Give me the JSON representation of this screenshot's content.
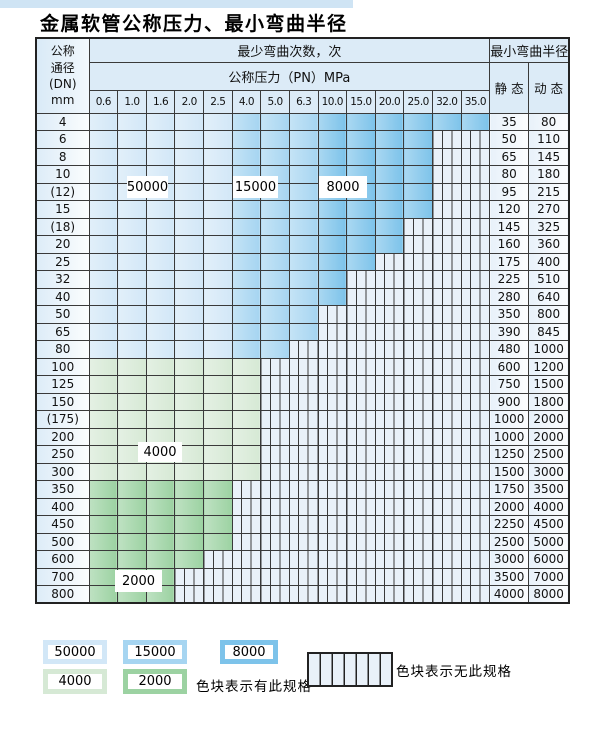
{
  "page_title": "金属软管公称压力、最小弯曲半径",
  "table": {
    "corner_lines": [
      "公称",
      "通径",
      "(DN)",
      "mm"
    ],
    "bend_cycles_header": "最少弯曲次数，次",
    "pressure_header": "公称压力（PN）MPa",
    "pressure_columns": [
      "0.6",
      "1.0",
      "1.6",
      "2.0",
      "2.5",
      "4.0",
      "5.0",
      "6.3",
      "10.0",
      "15.0",
      "20.0",
      "25.0",
      "32.0",
      "35.0"
    ],
    "radius_header": "最小弯曲半径",
    "static_header": "静 态",
    "dynamic_header": "动 态",
    "rows": [
      {
        "dn": "4",
        "band": "blue",
        "spec_cols": 14,
        "static": "35",
        "dynamic": "80"
      },
      {
        "dn": "6",
        "band": "blue",
        "spec_cols": 12,
        "static": "50",
        "dynamic": "110"
      },
      {
        "dn": "8",
        "band": "blue",
        "spec_cols": 12,
        "static": "65",
        "dynamic": "145"
      },
      {
        "dn": "10",
        "band": "blue",
        "spec_cols": 12,
        "static": "80",
        "dynamic": "180"
      },
      {
        "dn": "(12)",
        "band": "blue",
        "spec_cols": 12,
        "static": "95",
        "dynamic": "215"
      },
      {
        "dn": "15",
        "band": "blue",
        "spec_cols": 12,
        "static": "120",
        "dynamic": "270"
      },
      {
        "dn": "(18)",
        "band": "blue",
        "spec_cols": 11,
        "static": "145",
        "dynamic": "325"
      },
      {
        "dn": "20",
        "band": "blue",
        "spec_cols": 11,
        "static": "160",
        "dynamic": "360"
      },
      {
        "dn": "25",
        "band": "blue",
        "spec_cols": 10,
        "static": "175",
        "dynamic": "400"
      },
      {
        "dn": "32",
        "band": "blue",
        "spec_cols": 9,
        "static": "225",
        "dynamic": "510"
      },
      {
        "dn": "40",
        "band": "blue",
        "spec_cols": 9,
        "static": "280",
        "dynamic": "640"
      },
      {
        "dn": "50",
        "band": "blue",
        "spec_cols": 8,
        "static": "350",
        "dynamic": "800"
      },
      {
        "dn": "65",
        "band": "blue",
        "spec_cols": 8,
        "static": "390",
        "dynamic": "845"
      },
      {
        "dn": "80",
        "band": "blue",
        "spec_cols": 7,
        "static": "480",
        "dynamic": "1000"
      },
      {
        "dn": "100",
        "band": "4000",
        "spec_cols": 6,
        "static": "600",
        "dynamic": "1200"
      },
      {
        "dn": "125",
        "band": "4000",
        "spec_cols": 6,
        "static": "750",
        "dynamic": "1500"
      },
      {
        "dn": "150",
        "band": "4000",
        "spec_cols": 6,
        "static": "900",
        "dynamic": "1800"
      },
      {
        "dn": "(175)",
        "band": "4000",
        "spec_cols": 6,
        "static": "1000",
        "dynamic": "2000"
      },
      {
        "dn": "200",
        "band": "4000",
        "spec_cols": 6,
        "static": "1000",
        "dynamic": "2000"
      },
      {
        "dn": "250",
        "band": "4000",
        "spec_cols": 6,
        "static": "1250",
        "dynamic": "2500"
      },
      {
        "dn": "300",
        "band": "4000",
        "spec_cols": 6,
        "static": "1500",
        "dynamic": "3000"
      },
      {
        "dn": "350",
        "band": "2000",
        "spec_cols": 5,
        "static": "1750",
        "dynamic": "3500"
      },
      {
        "dn": "400",
        "band": "2000",
        "spec_cols": 5,
        "static": "2000",
        "dynamic": "4000"
      },
      {
        "dn": "450",
        "band": "2000",
        "spec_cols": 5,
        "static": "2250",
        "dynamic": "4500"
      },
      {
        "dn": "500",
        "band": "2000",
        "spec_cols": 5,
        "static": "2500",
        "dynamic": "5000"
      },
      {
        "dn": "600",
        "band": "2000",
        "spec_cols": 4,
        "static": "3000",
        "dynamic": "6000"
      },
      {
        "dn": "700",
        "band": "2000",
        "spec_cols": 3,
        "static": "3500",
        "dynamic": "7000"
      },
      {
        "dn": "800",
        "band": "2000",
        "spec_cols": 3,
        "static": "4000",
        "dynamic": "8000"
      }
    ]
  },
  "cycle_overlay_labels": [
    "50000",
    "15000",
    "8000",
    "4000",
    "2000"
  ],
  "legend": {
    "items": [
      {
        "label": "50000",
        "band": "c50000"
      },
      {
        "label": "15000",
        "band": "c15000"
      },
      {
        "label": "8000",
        "band": "c8000"
      },
      {
        "label": "4000",
        "band": "c4000"
      },
      {
        "label": "2000",
        "band": "c2000"
      }
    ],
    "has_spec_text": "色块表示有此规格",
    "no_spec_text": "色块表示无此规格"
  },
  "colors": {
    "cycles_50000": "#d2e7f7",
    "cycles_15000": "#a6d5f1",
    "cycles_8000": "#7dc3ea",
    "cycles_4000": "#d6e9d5",
    "cycles_2000": "#9cd2a2",
    "no_spec_background": "#e9f1f9",
    "grid_line": "#3a3a3a",
    "header_background": "#dcebf7",
    "top_bar": "#cfe4f4"
  }
}
